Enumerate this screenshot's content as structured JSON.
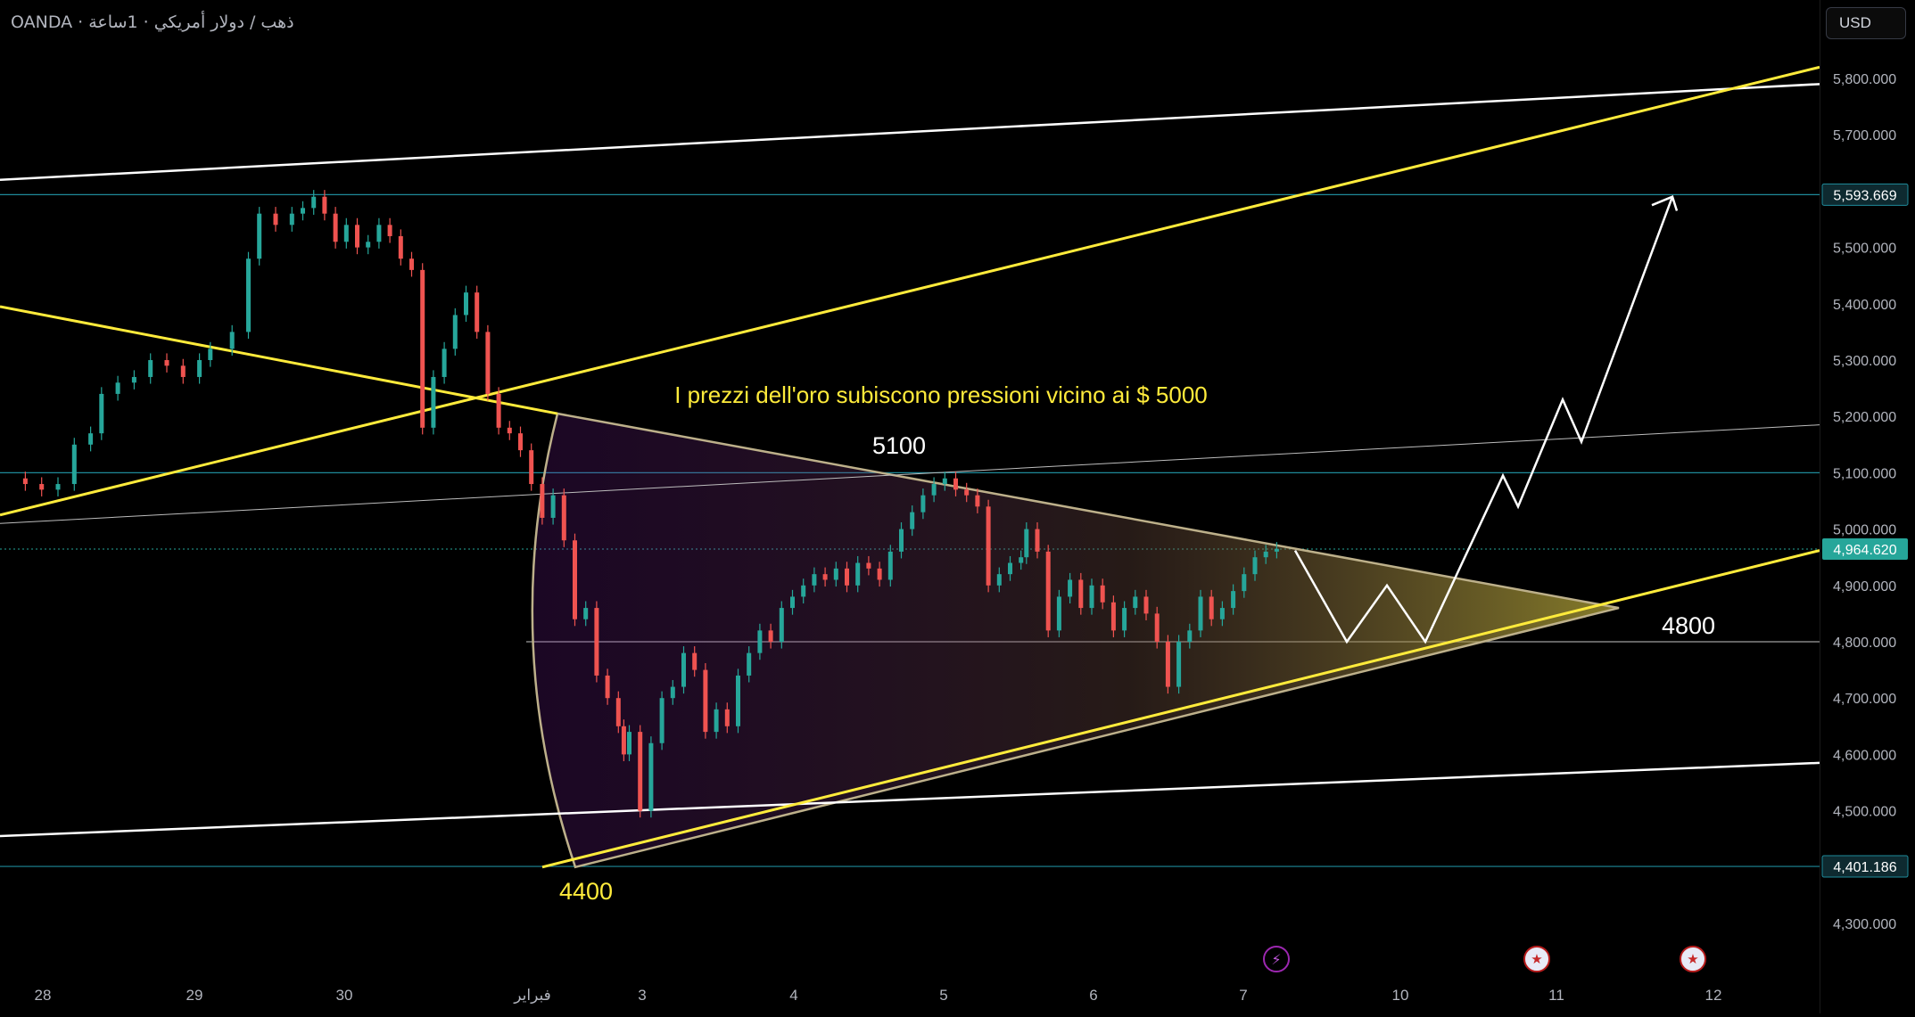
{
  "header": {
    "symbol_title": "OANDA · ذهب / دولار أمريكي · 1ساعة",
    "currency_label": "USD"
  },
  "chart_data": {
    "type": "candlestick",
    "title": "I prezzi dell'oro subiscono pressioni vicino ai $ 5000",
    "ylim": [
      4250,
      5850
    ],
    "y_ticks": [
      "5,800.000",
      "5,700.000",
      "5,600.000",
      "5,500.000",
      "5,400.000",
      "5,300.000",
      "5,200.000",
      "5,100.000",
      "5,000.000",
      "4,900.000",
      "4,800.000",
      "4,700.000",
      "4,600.000",
      "4,500.000",
      "4,400.000",
      "4,300.000"
    ],
    "x_ticks": [
      "28",
      "29",
      "30",
      "فبراير",
      "3",
      "4",
      "5",
      "6",
      "7",
      "10",
      "11",
      "12"
    ],
    "price_labels": [
      {
        "value": 5593.669,
        "text": "5,593.669"
      },
      {
        "value": 4964.62,
        "text": "4,964.620"
      },
      {
        "value": 4401.186,
        "text": "4,401.186"
      }
    ],
    "annotations": [
      {
        "text": "5100"
      },
      {
        "text": "4800"
      },
      {
        "text": "4400"
      }
    ],
    "ohlc_points": [
      [
        0,
        5090
      ],
      [
        4,
        5080
      ],
      [
        7,
        5070
      ],
      [
        10,
        5080
      ],
      [
        13,
        5150
      ],
      [
        16,
        5170
      ],
      [
        18,
        5240
      ],
      [
        21,
        5260
      ],
      [
        24,
        5270
      ],
      [
        27,
        5300
      ],
      [
        30,
        5290
      ],
      [
        33,
        5270
      ],
      [
        36,
        5300
      ],
      [
        38,
        5320
      ],
      [
        42,
        5350
      ],
      [
        45,
        5480
      ],
      [
        47,
        5560
      ],
      [
        50,
        5540
      ],
      [
        53,
        5560
      ],
      [
        55,
        5570
      ],
      [
        57,
        5590
      ],
      [
        59,
        5560
      ],
      [
        61,
        5510
      ],
      [
        63,
        5540
      ],
      [
        65,
        5500
      ],
      [
        67,
        5510
      ],
      [
        69,
        5540
      ],
      [
        71,
        5520
      ],
      [
        73,
        5480
      ],
      [
        75,
        5460
      ],
      [
        77,
        5180
      ],
      [
        79,
        5270
      ],
      [
        81,
        5320
      ],
      [
        83,
        5380
      ],
      [
        85,
        5420
      ],
      [
        87,
        5350
      ],
      [
        89,
        5240
      ],
      [
        91,
        5180
      ],
      [
        93,
        5170
      ],
      [
        95,
        5140
      ],
      [
        97,
        5080
      ],
      [
        99,
        5020
      ],
      [
        101,
        5060
      ],
      [
        103,
        4980
      ],
      [
        105,
        4840
      ],
      [
        107,
        4860
      ],
      [
        109,
        4740
      ],
      [
        111,
        4700
      ],
      [
        113,
        4650
      ],
      [
        114,
        4600
      ],
      [
        115,
        4640
      ],
      [
        117,
        4500
      ],
      [
        119,
        4620
      ],
      [
        121,
        4700
      ],
      [
        123,
        4720
      ],
      [
        125,
        4780
      ],
      [
        127,
        4750
      ],
      [
        129,
        4640
      ],
      [
        131,
        4680
      ],
      [
        133,
        4650
      ],
      [
        135,
        4740
      ],
      [
        137,
        4780
      ],
      [
        139,
        4820
      ],
      [
        141,
        4800
      ],
      [
        143,
        4860
      ],
      [
        145,
        4880
      ],
      [
        147,
        4900
      ],
      [
        149,
        4920
      ],
      [
        151,
        4910
      ],
      [
        153,
        4930
      ],
      [
        155,
        4900
      ],
      [
        157,
        4940
      ],
      [
        159,
        4930
      ],
      [
        161,
        4910
      ],
      [
        163,
        4960
      ],
      [
        165,
        5000
      ],
      [
        167,
        5030
      ],
      [
        169,
        5060
      ],
      [
        171,
        5080
      ],
      [
        173,
        5090
      ],
      [
        175,
        5070
      ],
      [
        177,
        5060
      ],
      [
        179,
        5040
      ],
      [
        181,
        4900
      ],
      [
        183,
        4920
      ],
      [
        185,
        4940
      ],
      [
        187,
        4950
      ],
      [
        188,
        5000
      ],
      [
        190,
        4960
      ],
      [
        192,
        4820
      ],
      [
        194,
        4880
      ],
      [
        196,
        4910
      ],
      [
        198,
        4860
      ],
      [
        200,
        4900
      ],
      [
        202,
        4870
      ],
      [
        204,
        4820
      ],
      [
        206,
        4860
      ],
      [
        208,
        4880
      ],
      [
        210,
        4850
      ],
      [
        212,
        4800
      ],
      [
        214,
        4720
      ],
      [
        216,
        4800
      ],
      [
        218,
        4820
      ],
      [
        220,
        4880
      ],
      [
        222,
        4840
      ],
      [
        224,
        4860
      ],
      [
        226,
        4890
      ],
      [
        228,
        4920
      ],
      [
        230,
        4950
      ],
      [
        232,
        4960
      ],
      [
        234,
        4965
      ]
    ]
  }
}
